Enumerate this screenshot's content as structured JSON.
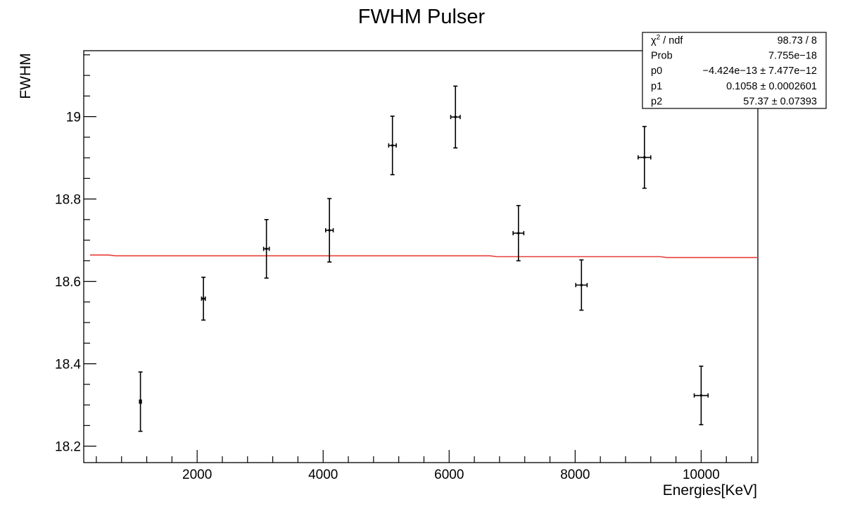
{
  "chart_data": {
    "type": "scatter",
    "title": "FWHM Pulser",
    "xlabel": "Energies[KeV]",
    "ylabel": "FWHM",
    "xlim": [
      200,
      10900
    ],
    "ylim": [
      18.16,
      19.16
    ],
    "x_ticks_major": [
      2000,
      4000,
      6000,
      8000,
      10000
    ],
    "x_tick_labels": [
      "2000",
      "4000",
      "6000",
      "8000",
      "10000"
    ],
    "y_ticks_major": [
      18.2,
      18.4,
      18.6,
      18.8,
      19.0
    ],
    "y_tick_labels": [
      "18.2",
      "18.4",
      "18.6",
      "18.8",
      "19"
    ],
    "x_minor_step": 400,
    "y_minor_step": 0.05,
    "grid": false,
    "series": [
      {
        "points": [
          {
            "x": 1100,
            "y": 18.308,
            "yerr": 0.072,
            "xerr": 15
          },
          {
            "x": 2100,
            "y": 18.558,
            "yerr": 0.052,
            "xerr": 30
          },
          {
            "x": 3100,
            "y": 18.679,
            "yerr": 0.071,
            "xerr": 45
          },
          {
            "x": 4100,
            "y": 18.724,
            "yerr": 0.077,
            "xerr": 60
          },
          {
            "x": 5100,
            "y": 18.93,
            "yerr": 0.071,
            "xerr": 60
          },
          {
            "x": 6100,
            "y": 18.999,
            "yerr": 0.075,
            "xerr": 75
          },
          {
            "x": 7100,
            "y": 18.717,
            "yerr": 0.067,
            "xerr": 85
          },
          {
            "x": 8100,
            "y": 18.591,
            "yerr": 0.061,
            "xerr": 90
          },
          {
            "x": 9100,
            "y": 18.901,
            "yerr": 0.075,
            "xerr": 100
          },
          {
            "x": 10000,
            "y": 18.323,
            "yerr": 0.071,
            "xerr": 110
          }
        ]
      },
      {
        "type": "line",
        "color": "#e8403a",
        "x": [
          300,
          600,
          700,
          6650,
          6750,
          9350,
          9450,
          10900
        ],
        "y": [
          18.664,
          18.664,
          18.662,
          18.662,
          18.66,
          18.66,
          18.658,
          18.658
        ]
      }
    ],
    "stats_box": {
      "position": "top-right",
      "rows": [
        {
          "name_main": "χ",
          "name_sup": "2",
          "name_rest": " / ndf",
          "value": "98.73 / 8"
        },
        {
          "name_main": "Prob",
          "name_sup": "",
          "name_rest": "",
          "value": "7.755e−18"
        },
        {
          "name_main": "p0",
          "name_sup": "",
          "name_rest": "",
          "value": "−4.424e−13 ± 7.477e−12"
        },
        {
          "name_main": "p1",
          "name_sup": "",
          "name_rest": "",
          "value": "0.1058 ± 0.0002601"
        },
        {
          "name_main": "p2",
          "name_sup": "",
          "name_rest": "",
          "value": "57.37 ± 0.07393"
        }
      ]
    }
  }
}
